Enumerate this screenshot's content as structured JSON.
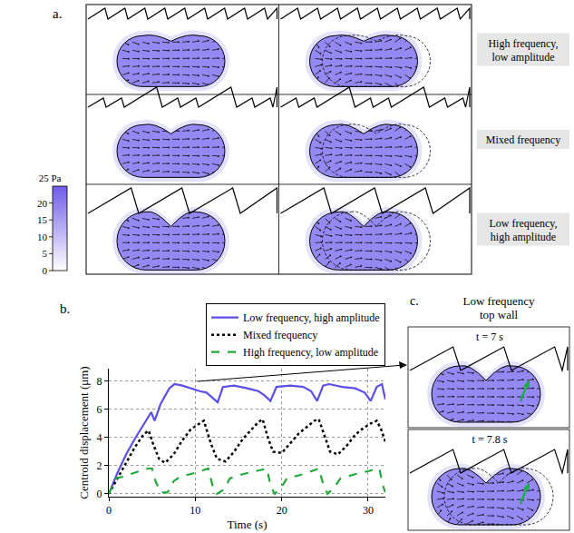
{
  "chart_data": {
    "type": "line",
    "panel_label": "b.",
    "x_label": "Time (s)",
    "y_label": "Centroid displacement (μm)",
    "xlim": [
      0,
      32
    ],
    "ylim": [
      -0.2,
      8.9
    ],
    "xticks": [
      0,
      10,
      20,
      30
    ],
    "yticks": [
      0,
      2,
      4,
      6,
      8
    ],
    "grid": true,
    "legend": "top",
    "series": [
      {
        "name": "Low frequency, high amplitude",
        "color": "#5a4fe6",
        "line_style": "solid",
        "x": [
          0,
          1,
          2,
          3,
          4,
          4.9,
          5.3,
          6,
          7,
          7.6,
          8.5,
          9.5,
          10.5,
          11.3,
          12,
          12.6,
          13.2,
          14.5,
          16,
          17.3,
          18,
          18.7,
          19.4,
          21,
          22.5,
          23.4,
          24.1,
          24.8,
          25.5,
          27,
          28.5,
          29.6,
          30.3,
          31,
          31.6,
          32
        ],
        "values": [
          0,
          1.5,
          2.8,
          3.9,
          4.9,
          5.8,
          5.2,
          6.4,
          7.5,
          7.8,
          7.7,
          7.5,
          7.3,
          7.2,
          6.8,
          6.5,
          7.6,
          7.7,
          7.5,
          7.3,
          7.0,
          6.6,
          7.6,
          7.7,
          7.6,
          7.3,
          6.6,
          7.7,
          7.8,
          7.6,
          7.5,
          7.2,
          6.6,
          7.6,
          7.8,
          6.7
        ]
      },
      {
        "name": "Mixed frequency",
        "color": "#000000",
        "line_style": "dot",
        "x": [
          0,
          1,
          2,
          3,
          4,
          4.6,
          5.1,
          5.8,
          6.5,
          7.5,
          8.5,
          9.5,
          10.5,
          11,
          11.8,
          12.5,
          13.5,
          14.5,
          15.5,
          16.5,
          17.3,
          17.8,
          18.4,
          19,
          20,
          21,
          22,
          23,
          23.8,
          24.3,
          25,
          25.6,
          26.5,
          27.5,
          28.5,
          29.5,
          30.3,
          31,
          31.5,
          32
        ],
        "values": [
          0,
          1.1,
          2.2,
          3.3,
          4.2,
          4.5,
          3.6,
          2.5,
          2.2,
          2.8,
          3.8,
          4.6,
          5.0,
          5.2,
          3.6,
          2.5,
          2.3,
          3.0,
          3.9,
          4.6,
          5.1,
          5.3,
          4.0,
          3.0,
          2.9,
          3.6,
          4.3,
          4.8,
          5.2,
          5.3,
          4.0,
          3.0,
          2.8,
          3.4,
          4.2,
          4.7,
          5.0,
          5.2,
          4.6,
          3.7
        ]
      },
      {
        "name": "High frequency, low amplitude",
        "color": "#22a83a",
        "line_style": "dash",
        "x": [
          0,
          0.8,
          1.5,
          3,
          4.5,
          5,
          5.4,
          6,
          6.8,
          7.5,
          8.2,
          10,
          11.5,
          12,
          12.5,
          13.3,
          14,
          15.5,
          17.5,
          18.3,
          18.7,
          19.2,
          20,
          20.6,
          22.5,
          24.3,
          24.8,
          25.3,
          26,
          26.8,
          28.5,
          30.7,
          31.3,
          31.7,
          32
        ],
        "values": [
          0,
          1.1,
          1.2,
          1.5,
          1.8,
          1.8,
          0.9,
          0.1,
          0.1,
          0.9,
          1.2,
          1.5,
          1.8,
          0.6,
          0,
          0.3,
          1.1,
          1.4,
          1.7,
          1.8,
          0.6,
          0,
          0.5,
          1.1,
          1.4,
          1.8,
          0.7,
          0,
          0.4,
          1.1,
          1.4,
          1.7,
          1.8,
          0.6,
          0.1
        ]
      }
    ]
  },
  "panel_a": {
    "label": "a.",
    "rows": [
      "High frequency, low amplitude",
      "Mixed frequency",
      "Low frequency, high amplitude"
    ],
    "colorbar": {
      "title": "25 Pa",
      "range": [
        0,
        25
      ],
      "ticks": [
        0,
        5,
        10,
        15,
        20
      ]
    }
  },
  "panel_c": {
    "label": "c.",
    "title": "Low frequency top wall",
    "frames": [
      "t = 7 s",
      "t = 7.8 s"
    ]
  }
}
